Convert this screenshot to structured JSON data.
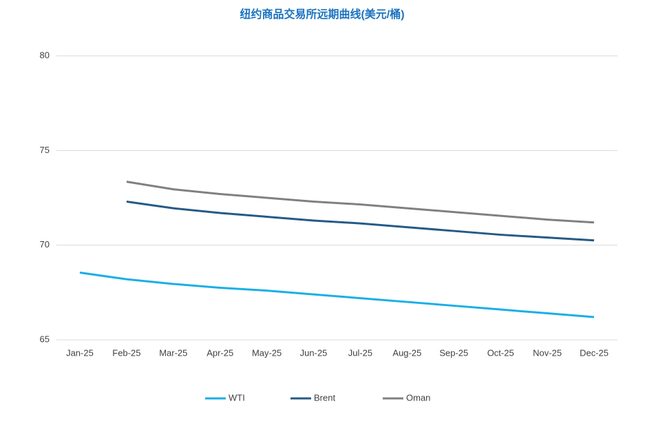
{
  "chart_data": {
    "type": "line",
    "title": "纽约商品交易所远期曲线(美元/桶)",
    "categories": [
      "Jan-25",
      "Feb-25",
      "Mar-25",
      "Apr-25",
      "May-25",
      "Jun-25",
      "Jul-25",
      "Aug-25",
      "Sep-25",
      "Oct-25",
      "Nov-25",
      "Dec-25"
    ],
    "series": [
      {
        "name": "WTI",
        "color": "#19afe6",
        "values": [
          68.55,
          68.2,
          67.95,
          67.75,
          67.6,
          67.4,
          67.2,
          67.0,
          66.8,
          66.6,
          66.4,
          66.2
        ]
      },
      {
        "name": "Brent",
        "color": "#245a87",
        "values": [
          null,
          72.3,
          71.95,
          71.7,
          71.5,
          71.3,
          71.15,
          70.95,
          70.75,
          70.55,
          70.4,
          70.25
        ]
      },
      {
        "name": "Oman",
        "color": "#808080",
        "values": [
          null,
          73.35,
          72.95,
          72.7,
          72.5,
          72.3,
          72.15,
          71.95,
          71.75,
          71.55,
          71.35,
          71.2
        ]
      }
    ],
    "ylim": [
      65,
      80
    ],
    "yticks": [
      65,
      70,
      75,
      80
    ],
    "grid": true,
    "legend": "bottom"
  }
}
